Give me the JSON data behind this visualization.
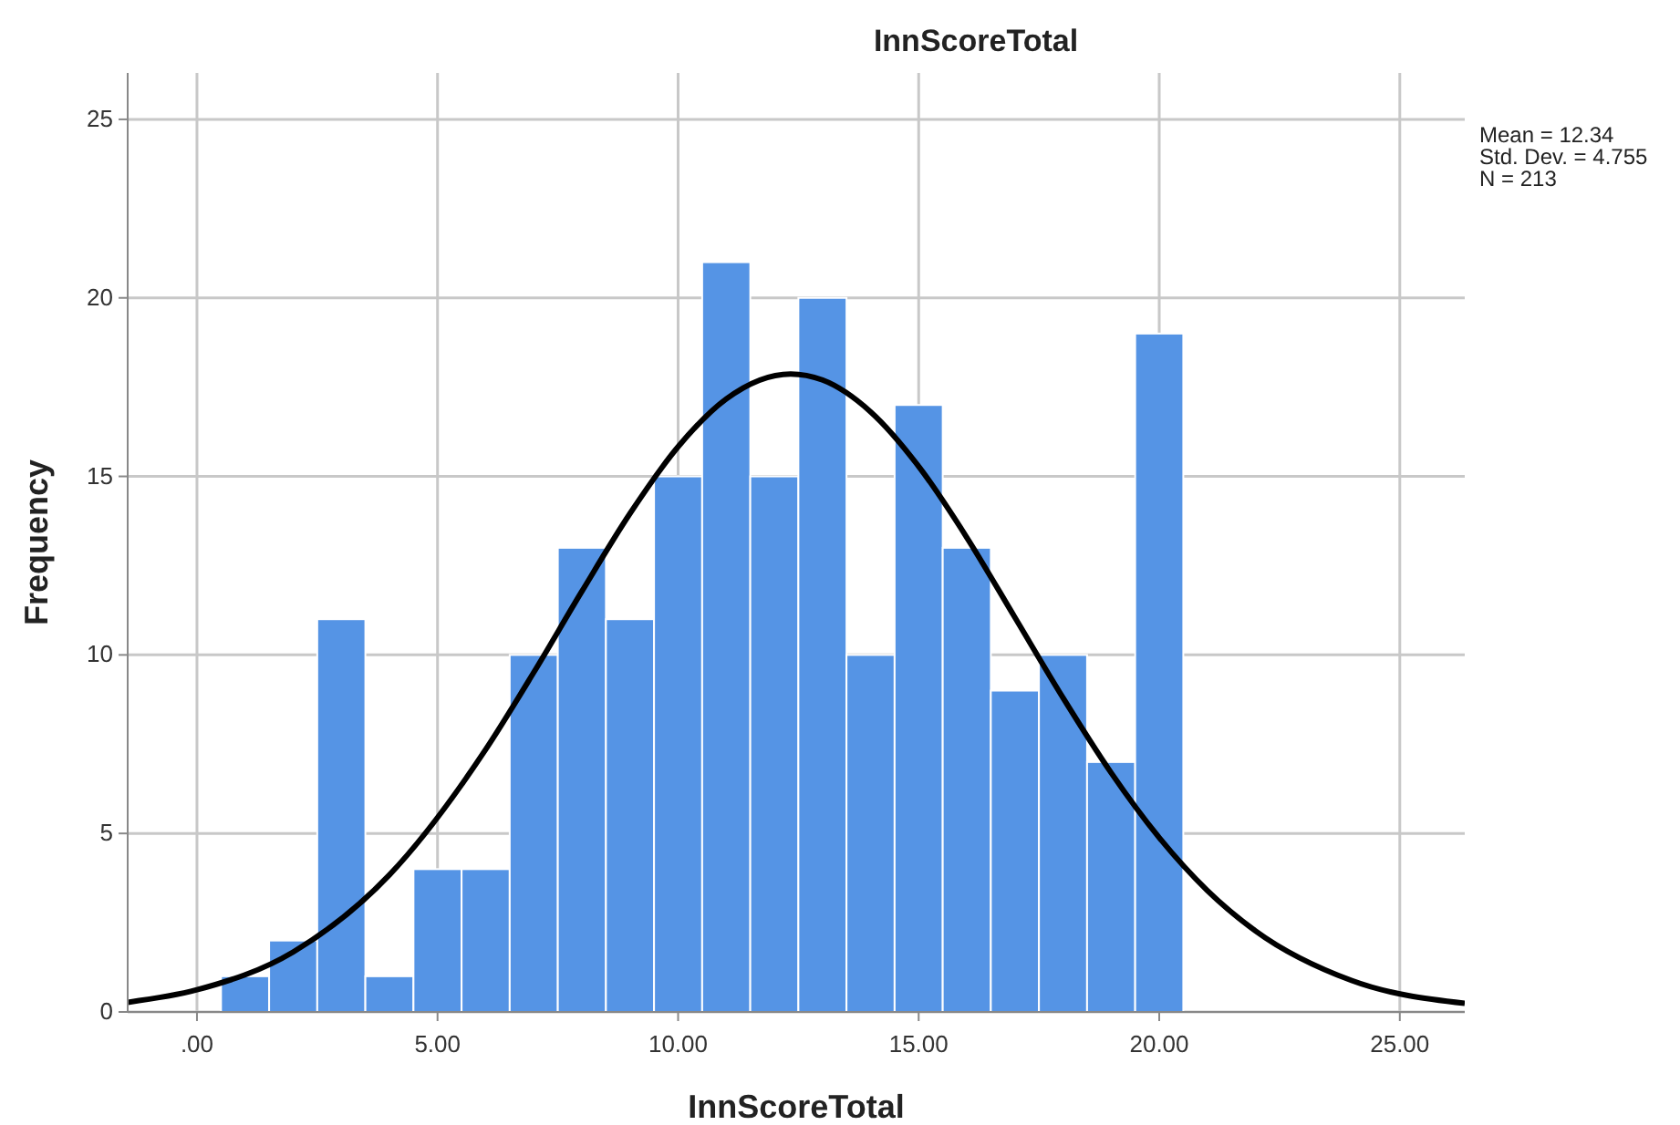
{
  "chart_data": {
    "type": "histogram",
    "title": "InnScoreTotal",
    "xlabel": "InnScoreTotal",
    "ylabel": "Frequency",
    "xlim": [
      -1.44,
      26.35
    ],
    "xticks": [
      {
        "value": 0,
        "label": ".00"
      },
      {
        "value": 5,
        "label": "5.00"
      },
      {
        "value": 10,
        "label": "10.00"
      },
      {
        "value": 15,
        "label": "15.00"
      },
      {
        "value": 20,
        "label": "20.00"
      },
      {
        "value": 25,
        "label": "25.00"
      }
    ],
    "ylim": [
      0,
      26.3
    ],
    "yticks": [
      0,
      5,
      10,
      15,
      20,
      25
    ],
    "grid": true,
    "marker": "none",
    "line_style": "solid",
    "annotations": [
      "Mean = 12.34",
      "Std. Dev. = 4.755",
      "N = 213"
    ],
    "series": [
      {
        "color": "#5594e5",
        "bins": [
          0.5,
          1.5,
          2.5,
          3.5,
          4.5,
          5.5,
          6.5,
          7.5,
          8.5,
          9.5,
          10.5,
          11.5,
          12.5,
          13.5,
          14.5,
          15.5,
          16.5,
          17.5,
          18.5,
          19.5,
          20.5
        ],
        "values": [
          1,
          2,
          11,
          1,
          4,
          4,
          10,
          13,
          11,
          15,
          21,
          15,
          20,
          10,
          17,
          13,
          9,
          10,
          7,
          19
        ]
      },
      {
        "type": "line",
        "color": "#000000",
        "x": [
          -1.44,
          0,
          2,
          4,
          6,
          7,
          8,
          9,
          10,
          11,
          12.34,
          13,
          14,
          15,
          16,
          17,
          18,
          19,
          20,
          21,
          22,
          24,
          26.35
        ],
        "values": [
          0.27,
          0.62,
          1.68,
          3.84,
          7.35,
          9.51,
          11.78,
          13.96,
          15.83,
          17.17,
          17.87,
          17.7,
          16.81,
          15.28,
          13.29,
          11.05,
          8.8,
          6.7,
          4.88,
          3.4,
          2.27,
          0.88,
          0.24
        ]
      }
    ]
  }
}
